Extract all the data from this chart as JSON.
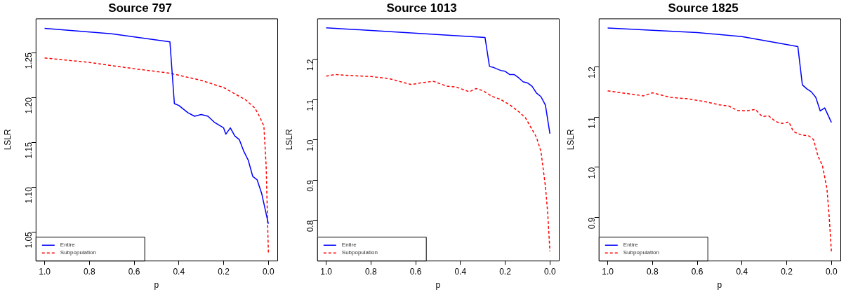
{
  "chart_data": [
    {
      "type": "line",
      "title": "Source 797",
      "xlabel": "p",
      "ylabel": "LSLR",
      "legend": "bottom left",
      "grid": false,
      "marker": "none",
      "xlim": [
        1.04,
        -0.04
      ],
      "xticks": [
        {
          "value": 1,
          "label": "1.0"
        },
        {
          "value": 0.8,
          "label": "0.8"
        },
        {
          "value": 0.6,
          "label": "0.6"
        },
        {
          "value": 0.4,
          "label": "0.4"
        },
        {
          "value": 0.2,
          "label": "0.2"
        },
        {
          "value": 0,
          "label": "0.0"
        }
      ],
      "ylim": [
        1.018,
        1.288
      ],
      "yticks": [
        {
          "value": 1.05,
          "label": "1.05"
        },
        {
          "value": 1.1,
          "label": "1.10"
        },
        {
          "value": 1.15,
          "label": "1.15"
        },
        {
          "value": 1.2,
          "label": "1.20"
        },
        {
          "value": 1.25,
          "label": "1.25"
        }
      ],
      "series": [
        {
          "name": "Entire",
          "color": "#0000ff",
          "line_style": "solid",
          "x": [
            1.0,
            0.7,
            0.44,
            0.42,
            0.4,
            0.36,
            0.33,
            0.3,
            0.27,
            0.24,
            0.2,
            0.19,
            0.17,
            0.15,
            0.13,
            0.11,
            0.09,
            0.07,
            0.05,
            0.03,
            0.0
          ],
          "values": [
            1.277,
            1.271,
            1.262,
            1.193,
            1.191,
            1.183,
            1.179,
            1.181,
            1.179,
            1.172,
            1.166,
            1.159,
            1.166,
            1.157,
            1.153,
            1.14,
            1.13,
            1.112,
            1.108,
            1.093,
            1.059
          ]
        },
        {
          "name": "Subpopulation",
          "color": "#ff0000",
          "line_style": "dashed",
          "x": [
            1.0,
            0.8,
            0.6,
            0.44,
            0.3,
            0.2,
            0.1,
            0.06,
            0.04,
            0.02,
            0.01,
            0.0
          ],
          "values": [
            1.244,
            1.239,
            1.232,
            1.227,
            1.219,
            1.211,
            1.197,
            1.188,
            1.179,
            1.168,
            1.124,
            1.027
          ]
        }
      ]
    },
    {
      "type": "line",
      "title": "Source 1013",
      "xlabel": "p",
      "ylabel": "LSLR",
      "legend": "bottom left",
      "grid": false,
      "marker": "none",
      "xlim": [
        1.04,
        -0.04
      ],
      "xticks": [
        {
          "value": 1,
          "label": "1.0"
        },
        {
          "value": 0.8,
          "label": "0.8"
        },
        {
          "value": 0.6,
          "label": "0.6"
        },
        {
          "value": 0.4,
          "label": "0.4"
        },
        {
          "value": 0.2,
          "label": "0.2"
        },
        {
          "value": 0,
          "label": "0.0"
        }
      ],
      "ylim": [
        0.7,
        1.301
      ],
      "yticks": [
        {
          "value": 0.8,
          "label": "0.8"
        },
        {
          "value": 0.9,
          "label": "0.9"
        },
        {
          "value": 1.0,
          "label": "1.0"
        },
        {
          "value": 1.1,
          "label": "1.1"
        },
        {
          "value": 1.2,
          "label": "1.2"
        }
      ],
      "series": [
        {
          "name": "Entire",
          "color": "#0000ff",
          "line_style": "solid",
          "x": [
            1.0,
            0.29,
            0.27,
            0.25,
            0.22,
            0.2,
            0.18,
            0.16,
            0.14,
            0.12,
            0.1,
            0.08,
            0.06,
            0.04,
            0.02,
            0.0
          ],
          "values": [
            1.278,
            1.254,
            1.182,
            1.179,
            1.172,
            1.17,
            1.162,
            1.162,
            1.154,
            1.144,
            1.141,
            1.133,
            1.116,
            1.107,
            1.086,
            1.015
          ]
        },
        {
          "name": "Subpopulation",
          "color": "#ff0000",
          "line_style": "dashed",
          "x": [
            1.0,
            0.96,
            0.88,
            0.8,
            0.72,
            0.66,
            0.62,
            0.58,
            0.52,
            0.46,
            0.42,
            0.36,
            0.33,
            0.3,
            0.26,
            0.22,
            0.18,
            0.14,
            0.11,
            0.08,
            0.06,
            0.04,
            0.02,
            0.01,
            0.0
          ],
          "values": [
            1.158,
            1.162,
            1.159,
            1.157,
            1.152,
            1.143,
            1.137,
            1.141,
            1.145,
            1.133,
            1.131,
            1.119,
            1.127,
            1.122,
            1.108,
            1.1,
            1.087,
            1.07,
            1.055,
            1.026,
            1.006,
            0.971,
            0.884,
            0.82,
            0.723
          ]
        }
      ]
    },
    {
      "type": "line",
      "title": "Source 1825",
      "xlabel": "p",
      "ylabel": "LSLR",
      "legend": "bottom left",
      "grid": false,
      "marker": "none",
      "xlim": [
        1.04,
        -0.04
      ],
      "xticks": [
        {
          "value": 1,
          "label": "1.0"
        },
        {
          "value": 0.8,
          "label": "0.8"
        },
        {
          "value": 0.6,
          "label": "0.6"
        },
        {
          "value": 0.4,
          "label": "0.4"
        },
        {
          "value": 0.2,
          "label": "0.2"
        },
        {
          "value": 0,
          "label": "0.0"
        }
      ],
      "ylim": [
        0.814,
        1.296
      ],
      "yticks": [
        {
          "value": 0.9,
          "label": "0.9"
        },
        {
          "value": 1.0,
          "label": "1.0"
        },
        {
          "value": 1.1,
          "label": "1.1"
        },
        {
          "value": 1.2,
          "label": "1.2"
        }
      ],
      "series": [
        {
          "name": "Entire",
          "color": "#0000ff",
          "line_style": "solid",
          "x": [
            1.0,
            0.6,
            0.4,
            0.25,
            0.15,
            0.13,
            0.11,
            0.09,
            0.07,
            0.05,
            0.03,
            0.0
          ],
          "values": [
            1.277,
            1.268,
            1.26,
            1.248,
            1.24,
            1.164,
            1.156,
            1.15,
            1.139,
            1.112,
            1.118,
            1.089
          ]
        },
        {
          "name": "Subpopulation",
          "color": "#ff0000",
          "line_style": "dashed",
          "x": [
            1.0,
            0.92,
            0.84,
            0.8,
            0.72,
            0.64,
            0.56,
            0.5,
            0.46,
            0.42,
            0.38,
            0.34,
            0.31,
            0.28,
            0.25,
            0.22,
            0.19,
            0.17,
            0.14,
            0.1,
            0.08,
            0.06,
            0.04,
            0.02,
            0.01,
            0.0
          ],
          "values": [
            1.152,
            1.147,
            1.142,
            1.148,
            1.139,
            1.136,
            1.13,
            1.124,
            1.122,
            1.113,
            1.112,
            1.115,
            1.101,
            1.102,
            1.091,
            1.087,
            1.09,
            1.071,
            1.065,
            1.062,
            1.055,
            1.022,
            1.003,
            0.957,
            0.901,
            0.831
          ]
        }
      ]
    }
  ]
}
